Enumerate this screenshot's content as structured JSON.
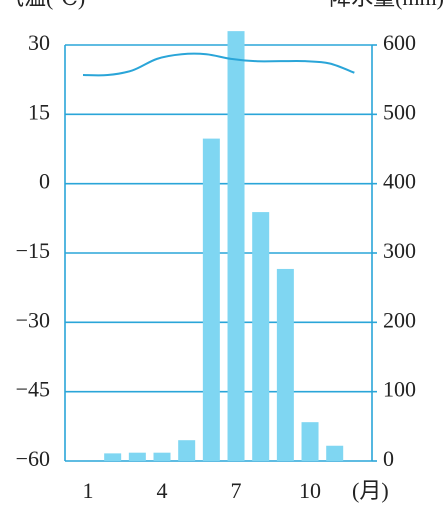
{
  "chart_data": {
    "type": "bar",
    "y_label": "气温(℃)",
    "y2_label": "降水量(mm)",
    "x_label": "(月)",
    "categories": [
      "1",
      null,
      null,
      "4",
      null,
      null,
      "7",
      null,
      null,
      "10",
      null,
      null
    ],
    "series": [
      {
        "name": "降水量",
        "type": "bar",
        "axis": "y2",
        "color": "#7fd6f2",
        "values": [
          0,
          11,
          12,
          12,
          30,
          465,
          620,
          359,
          277,
          56,
          22,
          0
        ]
      },
      {
        "name": "气温",
        "type": "line",
        "axis": "y",
        "color": "#2aa5d8",
        "values": [
          23.5,
          23.5,
          24.5,
          27,
          28,
          28,
          27,
          26.5,
          26.5,
          26.5,
          26,
          24
        ]
      }
    ],
    "ylim": [
      -60,
      30
    ],
    "yticks": [
      {
        "value": -60,
        "label": "−60"
      },
      {
        "value": -45,
        "label": "−45"
      },
      {
        "value": -30,
        "label": "−30"
      },
      {
        "value": -15,
        "label": "−15"
      },
      0,
      15,
      30
    ],
    "y2lim": [
      0,
      600
    ],
    "y2ticks": [
      0,
      100,
      200,
      300,
      400,
      500,
      600
    ],
    "grid": true
  }
}
